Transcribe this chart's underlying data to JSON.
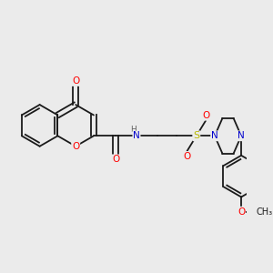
{
  "background_color": "#ebebeb",
  "atoms": {
    "colors": {
      "C": "#1a1a1a",
      "O": "#ff0000",
      "N": "#0000cc",
      "S": "#b8b800",
      "H": "#606060"
    }
  },
  "bond_color": "#1a1a1a",
  "bond_width": 1.3,
  "figsize": [
    3.0,
    3.0
  ],
  "dpi": 100
}
